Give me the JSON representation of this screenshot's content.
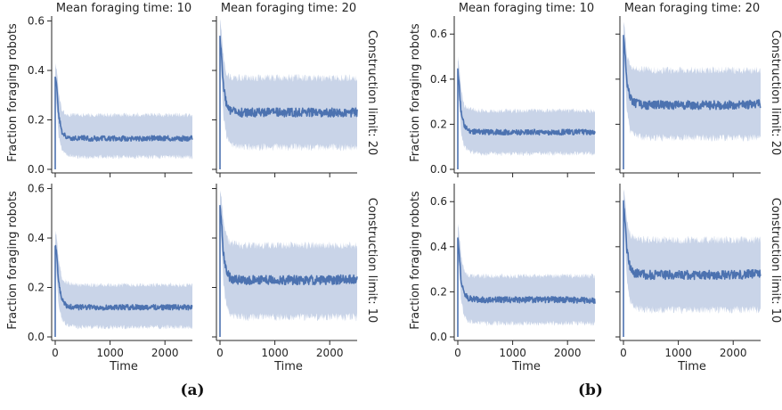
{
  "chart_data": [
    {
      "type": "line",
      "panel": "a",
      "row": 0,
      "col": 0,
      "col_title": "Mean foraging time: 10",
      "row_title": "",
      "ylabel": "Fraction foraging robots",
      "xlabel": "",
      "xlim": [
        0,
        2500
      ],
      "ylim": [
        0,
        0.62
      ],
      "xticks": [
        0,
        1000,
        2000
      ],
      "xtick_labels": [
        "0",
        "1000",
        "2000"
      ],
      "yticks": [
        0.0,
        0.2,
        0.4,
        0.6
      ],
      "ytick_labels": [
        "0.0",
        "0.2",
        "0.4",
        "0.6"
      ],
      "x": [
        0,
        30,
        60,
        120,
        200,
        400,
        800,
        1200,
        1600,
        2000,
        2500
      ],
      "mean": [
        0.37,
        0.33,
        0.22,
        0.15,
        0.13,
        0.125,
        0.125,
        0.125,
        0.125,
        0.125,
        0.125
      ],
      "lower": [
        0.3,
        0.25,
        0.14,
        0.08,
        0.06,
        0.05,
        0.05,
        0.05,
        0.05,
        0.05,
        0.05
      ],
      "upper": [
        0.43,
        0.4,
        0.32,
        0.24,
        0.22,
        0.22,
        0.22,
        0.22,
        0.22,
        0.22,
        0.22
      ]
    },
    {
      "type": "line",
      "panel": "a",
      "row": 0,
      "col": 1,
      "col_title": "Mean foraging time: 20",
      "row_title": "Construction limit: 20",
      "ylabel": "",
      "xlabel": "",
      "xlim": [
        0,
        2500
      ],
      "ylim": [
        0,
        0.62
      ],
      "xticks": [
        0,
        1000,
        2000
      ],
      "xtick_labels": [
        "0",
        "1000",
        "2000"
      ],
      "yticks": [
        0.0,
        0.2,
        0.4,
        0.6
      ],
      "ytick_labels": [
        "",
        "",
        "",
        ""
      ],
      "x": [
        0,
        30,
        60,
        120,
        200,
        400,
        800,
        1200,
        1600,
        2000,
        2500
      ],
      "mean": [
        0.53,
        0.46,
        0.34,
        0.26,
        0.235,
        0.23,
        0.23,
        0.23,
        0.23,
        0.23,
        0.23
      ],
      "lower": [
        0.46,
        0.36,
        0.22,
        0.13,
        0.1,
        0.09,
        0.09,
        0.09,
        0.09,
        0.09,
        0.09
      ],
      "upper": [
        0.6,
        0.56,
        0.46,
        0.39,
        0.37,
        0.37,
        0.37,
        0.37,
        0.37,
        0.37,
        0.37
      ]
    },
    {
      "type": "line",
      "panel": "a",
      "row": 1,
      "col": 0,
      "col_title": "",
      "row_title": "",
      "ylabel": "Fraction foraging robots",
      "xlabel": "Time",
      "xlim": [
        0,
        2500
      ],
      "ylim": [
        0,
        0.62
      ],
      "xticks": [
        0,
        1000,
        2000
      ],
      "xtick_labels": [
        "0",
        "1000",
        "2000"
      ],
      "yticks": [
        0.0,
        0.2,
        0.4,
        0.6
      ],
      "ytick_labels": [
        "0.0",
        "0.2",
        "0.4",
        "0.6"
      ],
      "x": [
        0,
        30,
        60,
        120,
        200,
        400,
        800,
        1200,
        1600,
        2000,
        2500
      ],
      "mean": [
        0.37,
        0.33,
        0.22,
        0.15,
        0.125,
        0.12,
        0.12,
        0.12,
        0.12,
        0.12,
        0.12
      ],
      "lower": [
        0.3,
        0.24,
        0.13,
        0.07,
        0.05,
        0.04,
        0.04,
        0.04,
        0.04,
        0.04,
        0.04
      ],
      "upper": [
        0.43,
        0.4,
        0.31,
        0.24,
        0.22,
        0.21,
        0.21,
        0.21,
        0.21,
        0.21,
        0.21
      ]
    },
    {
      "type": "line",
      "panel": "a",
      "row": 1,
      "col": 1,
      "col_title": "",
      "row_title": "Construction limit: 10",
      "ylabel": "",
      "xlabel": "Time",
      "xlim": [
        0,
        2500
      ],
      "ylim": [
        0,
        0.62
      ],
      "xticks": [
        0,
        1000,
        2000
      ],
      "xtick_labels": [
        "0",
        "1000",
        "2000"
      ],
      "yticks": [
        0.0,
        0.2,
        0.4,
        0.6
      ],
      "ytick_labels": [
        "",
        "",
        "",
        ""
      ],
      "x": [
        0,
        30,
        60,
        120,
        200,
        400,
        800,
        1200,
        1600,
        2000,
        2500
      ],
      "mean": [
        0.53,
        0.46,
        0.34,
        0.26,
        0.235,
        0.23,
        0.23,
        0.23,
        0.23,
        0.23,
        0.235
      ],
      "lower": [
        0.46,
        0.36,
        0.22,
        0.12,
        0.09,
        0.08,
        0.08,
        0.08,
        0.08,
        0.08,
        0.08
      ],
      "upper": [
        0.6,
        0.56,
        0.47,
        0.4,
        0.38,
        0.37,
        0.37,
        0.37,
        0.37,
        0.37,
        0.37
      ]
    },
    {
      "type": "line",
      "panel": "b",
      "row": 0,
      "col": 0,
      "col_title": "Mean foraging time: 10",
      "row_title": "",
      "ylabel": "Fraction foraging robots",
      "xlabel": "",
      "xlim": [
        0,
        2500
      ],
      "ylim": [
        0,
        0.68
      ],
      "xticks": [
        0,
        1000,
        2000
      ],
      "xtick_labels": [
        "0",
        "1000",
        "2000"
      ],
      "yticks": [
        0.0,
        0.2,
        0.4,
        0.6
      ],
      "ytick_labels": [
        "0.0",
        "0.2",
        "0.4",
        "0.6"
      ],
      "x": [
        0,
        30,
        60,
        120,
        200,
        400,
        800,
        1200,
        1600,
        2000,
        2500
      ],
      "mean": [
        0.44,
        0.36,
        0.25,
        0.19,
        0.17,
        0.165,
        0.165,
        0.165,
        0.165,
        0.165,
        0.165
      ],
      "lower": [
        0.37,
        0.28,
        0.16,
        0.1,
        0.08,
        0.07,
        0.07,
        0.07,
        0.07,
        0.07,
        0.07
      ],
      "upper": [
        0.5,
        0.45,
        0.35,
        0.28,
        0.27,
        0.26,
        0.26,
        0.26,
        0.26,
        0.26,
        0.26
      ]
    },
    {
      "type": "line",
      "panel": "b",
      "row": 0,
      "col": 1,
      "col_title": "Mean foraging time: 20",
      "row_title": "Construction limit: 20",
      "ylabel": "",
      "xlabel": "",
      "xlim": [
        0,
        2500
      ],
      "ylim": [
        0,
        0.68
      ],
      "xticks": [
        0,
        1000,
        2000
      ],
      "xtick_labels": [
        "0",
        "1000",
        "2000"
      ],
      "yticks": [
        0.0,
        0.2,
        0.4,
        0.6
      ],
      "ytick_labels": [
        "",
        "",
        "",
        ""
      ],
      "x": [
        0,
        30,
        60,
        120,
        200,
        400,
        800,
        1200,
        1600,
        2000,
        2500
      ],
      "mean": [
        0.6,
        0.51,
        0.39,
        0.32,
        0.295,
        0.285,
        0.285,
        0.285,
        0.285,
        0.285,
        0.29
      ],
      "lower": [
        0.53,
        0.41,
        0.26,
        0.17,
        0.15,
        0.14,
        0.14,
        0.14,
        0.14,
        0.14,
        0.14
      ],
      "upper": [
        0.66,
        0.61,
        0.51,
        0.46,
        0.45,
        0.44,
        0.44,
        0.44,
        0.44,
        0.44,
        0.44
      ]
    },
    {
      "type": "line",
      "panel": "b",
      "row": 1,
      "col": 0,
      "col_title": "",
      "row_title": "",
      "ylabel": "Fraction foraging robots",
      "xlabel": "Time",
      "xlim": [
        0,
        2500
      ],
      "ylim": [
        0,
        0.68
      ],
      "xticks": [
        0,
        1000,
        2000
      ],
      "xtick_labels": [
        "0",
        "1000",
        "2000"
      ],
      "yticks": [
        0.0,
        0.2,
        0.4,
        0.6
      ],
      "ytick_labels": [
        "0.0",
        "0.2",
        "0.4",
        "0.6"
      ],
      "x": [
        0,
        30,
        60,
        120,
        200,
        400,
        800,
        1200,
        1600,
        2000,
        2500
      ],
      "mean": [
        0.44,
        0.36,
        0.25,
        0.19,
        0.17,
        0.165,
        0.165,
        0.165,
        0.165,
        0.165,
        0.16
      ],
      "lower": [
        0.37,
        0.28,
        0.16,
        0.09,
        0.07,
        0.06,
        0.06,
        0.06,
        0.06,
        0.06,
        0.06
      ],
      "upper": [
        0.5,
        0.45,
        0.36,
        0.29,
        0.27,
        0.27,
        0.27,
        0.27,
        0.27,
        0.27,
        0.27
      ]
    },
    {
      "type": "line",
      "panel": "b",
      "row": 1,
      "col": 1,
      "col_title": "",
      "row_title": "Construction limit: 10",
      "ylabel": "",
      "xlabel": "Time",
      "xlim": [
        0,
        2500
      ],
      "ylim": [
        0,
        0.68
      ],
      "xticks": [
        0,
        1000,
        2000
      ],
      "xtick_labels": [
        "0",
        "1000",
        "2000"
      ],
      "yticks": [
        0.0,
        0.2,
        0.4,
        0.6
      ],
      "ytick_labels": [
        "",
        "",
        "",
        ""
      ],
      "x": [
        0,
        30,
        60,
        120,
        200,
        400,
        800,
        1200,
        1600,
        2000,
        2500
      ],
      "mean": [
        0.6,
        0.51,
        0.39,
        0.31,
        0.285,
        0.275,
        0.275,
        0.275,
        0.275,
        0.275,
        0.28
      ],
      "lower": [
        0.53,
        0.41,
        0.26,
        0.16,
        0.13,
        0.12,
        0.12,
        0.12,
        0.12,
        0.12,
        0.12
      ],
      "upper": [
        0.66,
        0.61,
        0.52,
        0.45,
        0.44,
        0.43,
        0.43,
        0.43,
        0.43,
        0.43,
        0.43
      ]
    }
  ],
  "captions": {
    "a": "(a)",
    "b": "(b)"
  },
  "colors": {
    "line": "#4c72b0",
    "band": "#c9d4e8",
    "axis": "#262626"
  }
}
